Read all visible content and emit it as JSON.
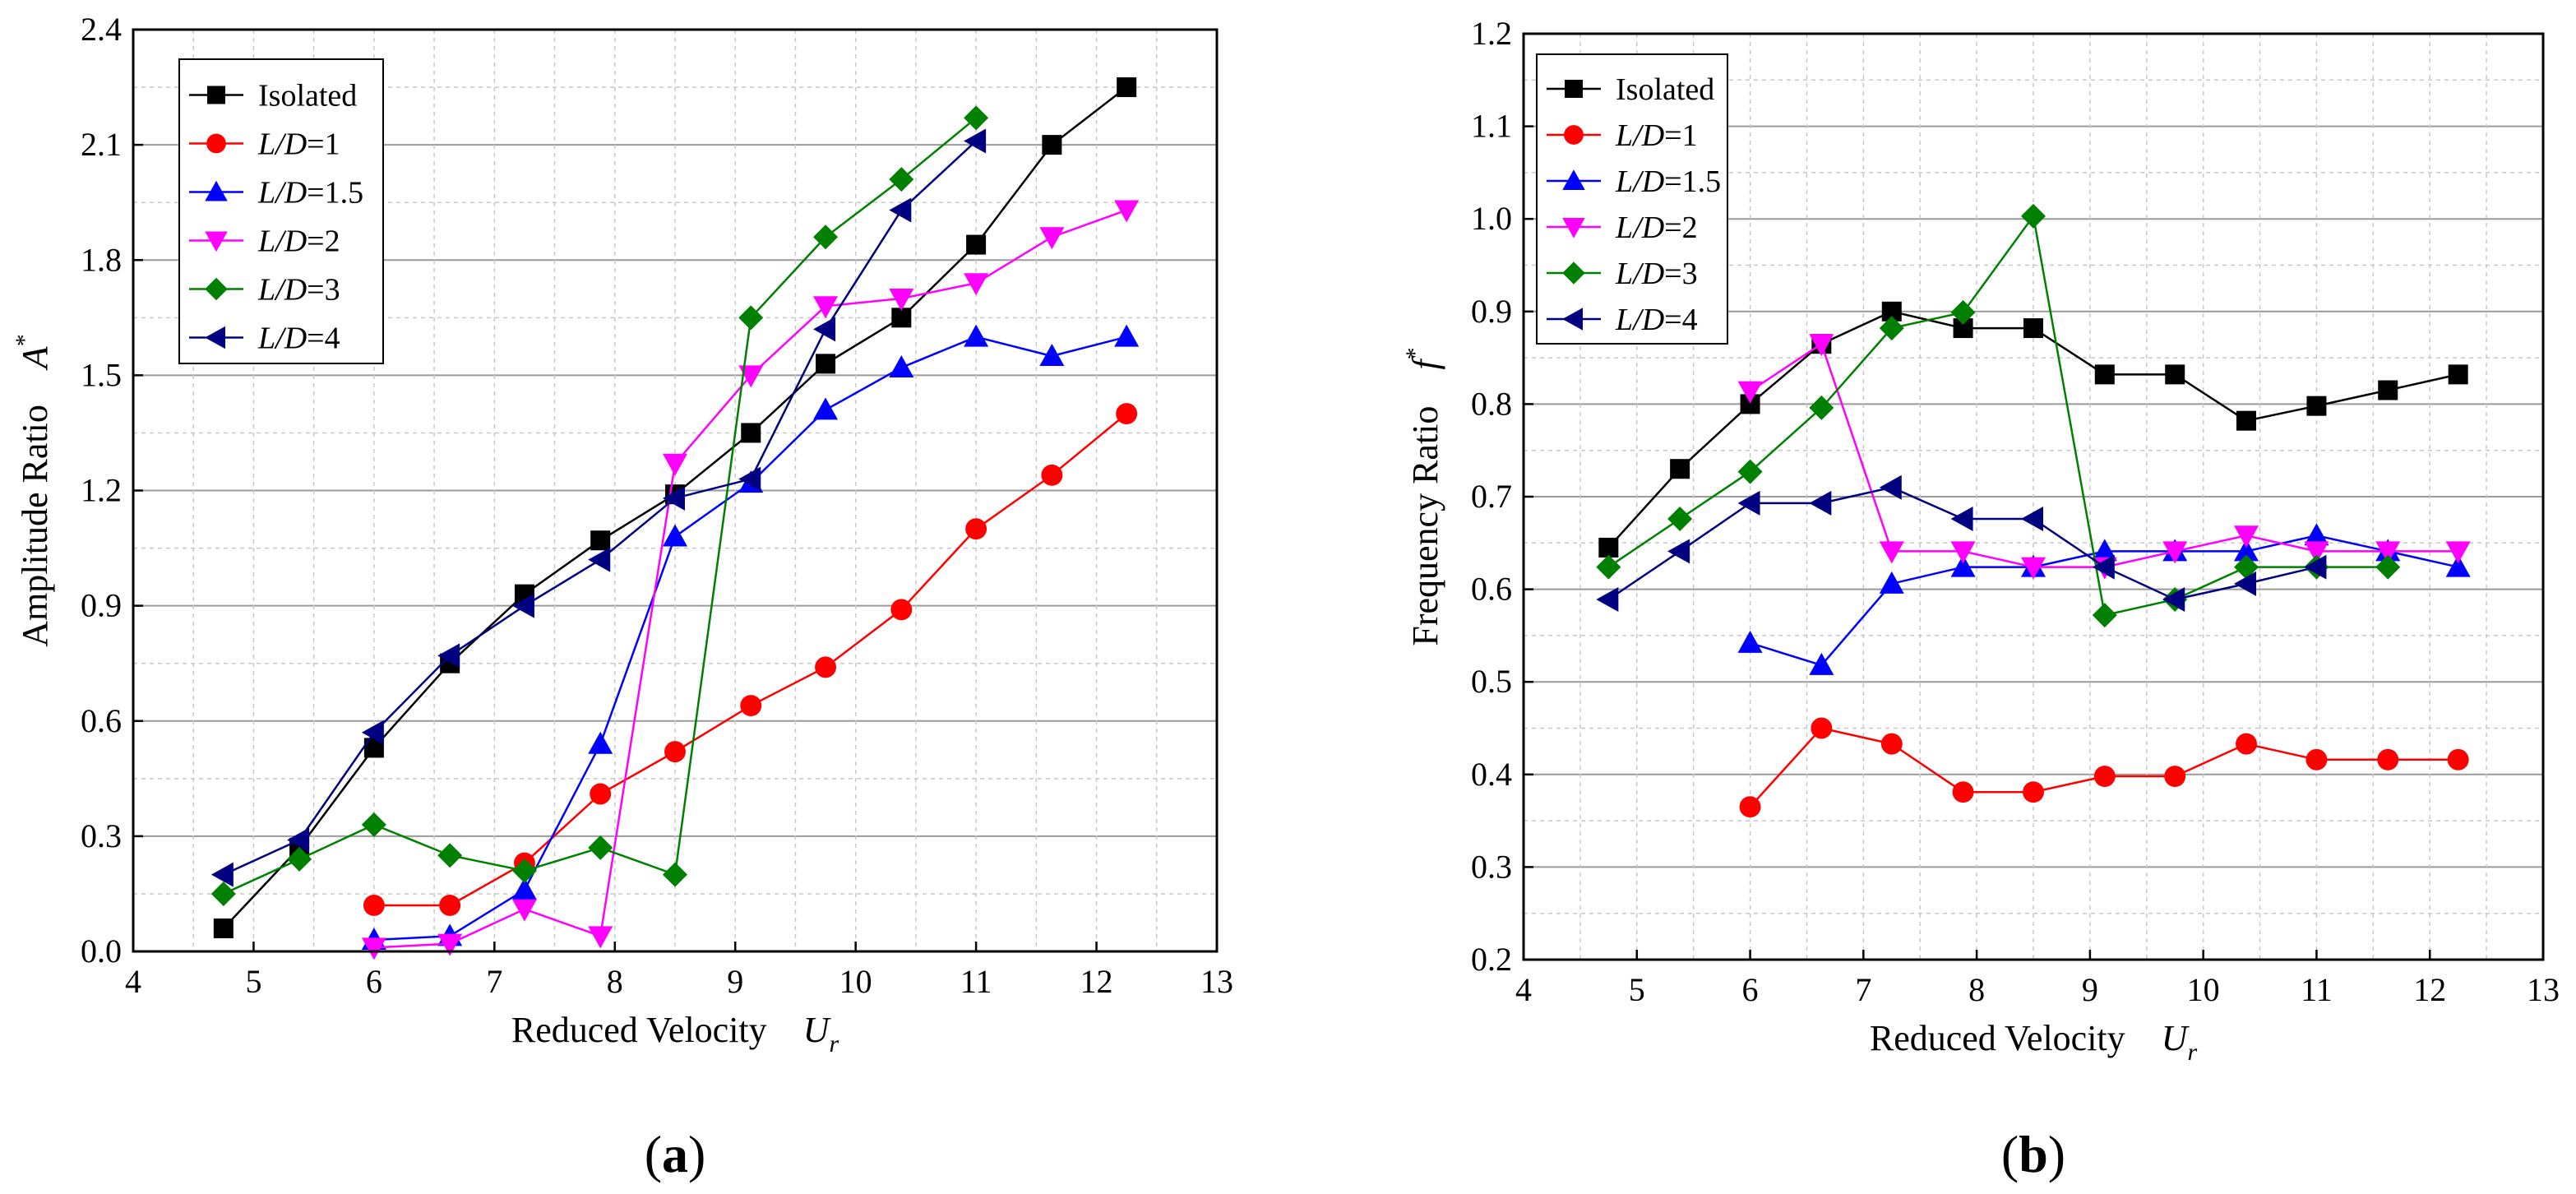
{
  "chart_data": [
    {
      "type": "line",
      "panel": "(a)",
      "panel_letter": "a",
      "xlabel": "Reduced Velocity",
      "xlabel_symbol": "U",
      "xlabel_sub": "r",
      "ylabel": "Amplitude Ratio",
      "ylabel_symbol": "A",
      "ylabel_sup": "*",
      "xlim": [
        4,
        13
      ],
      "ylim": [
        0,
        2.4
      ],
      "xticks": [
        "4",
        "5",
        "6",
        "7",
        "8",
        "9",
        "10",
        "11",
        "12",
        "13"
      ],
      "yticks": [
        "0.0",
        "0.3",
        "0.6",
        "0.9",
        "1.2",
        "1.5",
        "1.8",
        "2.1",
        "2.4"
      ],
      "grid": true,
      "legend_position": "top-left",
      "series": [
        {
          "name": "Isolated",
          "label_prefix": "",
          "label_suffix": "Isolated",
          "color": "#000000",
          "marker": "square",
          "x": [
            4.75,
            5.38,
            6.0,
            6.63,
            7.25,
            7.88,
            8.5,
            9.13,
            9.75,
            10.38,
            11.0,
            11.63,
            12.25
          ],
          "y": [
            0.06,
            0.27,
            0.53,
            0.75,
            0.93,
            1.07,
            1.19,
            1.35,
            1.53,
            1.65,
            1.84,
            2.1,
            2.25
          ]
        },
        {
          "name": "L/D=1",
          "label_prefix": "L/D",
          "label_suffix": "=1",
          "color": "#ff0000",
          "marker": "circle",
          "x": [
            6.0,
            6.63,
            7.25,
            7.88,
            8.5,
            9.13,
            9.75,
            10.38,
            11.0,
            11.63,
            12.25
          ],
          "y": [
            0.12,
            0.12,
            0.23,
            0.41,
            0.52,
            0.64,
            0.74,
            0.89,
            1.1,
            1.24,
            1.4
          ]
        },
        {
          "name": "L/D=1.5",
          "label_prefix": "L/D",
          "label_suffix": "=1.5",
          "color": "#0000ff",
          "marker": "triangle-up",
          "x": [
            6.0,
            6.63,
            7.25,
            7.88,
            8.5,
            9.13,
            9.75,
            10.38,
            11.0,
            11.63,
            12.25
          ],
          "y": [
            0.03,
            0.04,
            0.16,
            0.54,
            1.08,
            1.22,
            1.41,
            1.52,
            1.6,
            1.55,
            1.6
          ]
        },
        {
          "name": "L/D=2",
          "label_prefix": "L/D",
          "label_suffix": "=2",
          "color": "#ff00ff",
          "marker": "triangle-down",
          "x": [
            6.0,
            6.63,
            7.25,
            7.88,
            8.5,
            9.13,
            9.75,
            10.38,
            11.0,
            11.63,
            12.25
          ],
          "y": [
            0.01,
            0.02,
            0.11,
            0.04,
            1.27,
            1.5,
            1.68,
            1.7,
            1.74,
            1.86,
            1.93
          ]
        },
        {
          "name": "L/D=3",
          "label_prefix": "L/D",
          "label_suffix": "=3",
          "color": "#008000",
          "marker": "diamond",
          "x": [
            4.75,
            5.38,
            6.0,
            6.63,
            7.25,
            7.88,
            8.5,
            9.13,
            9.75,
            10.38,
            11.0
          ],
          "y": [
            0.15,
            0.24,
            0.33,
            0.25,
            0.21,
            0.27,
            0.2,
            1.65,
            1.86,
            2.01,
            2.17
          ]
        },
        {
          "name": "L/D=4",
          "label_prefix": "L/D",
          "label_suffix": "=4",
          "color": "#000080",
          "marker": "triangle-left",
          "x": [
            4.75,
            5.38,
            6.0,
            6.63,
            7.25,
            7.88,
            8.5,
            9.13,
            9.75,
            10.38,
            11.0
          ],
          "y": [
            0.2,
            0.29,
            0.57,
            0.77,
            0.9,
            1.02,
            1.18,
            1.23,
            1.62,
            1.93,
            2.11
          ]
        }
      ]
    },
    {
      "type": "line",
      "panel": "(b)",
      "panel_letter": "b",
      "xlabel": "Reduced Velocity",
      "xlabel_symbol": "U",
      "xlabel_sub": "r",
      "ylabel": "Frequency Ratio",
      "ylabel_symbol": "f",
      "ylabel_sup": "*",
      "xlim": [
        4,
        13
      ],
      "ylim": [
        0.2,
        1.2
      ],
      "xticks": [
        "4",
        "5",
        "6",
        "7",
        "8",
        "9",
        "10",
        "11",
        "12",
        "13"
      ],
      "yticks": [
        "0.2",
        "0.3",
        "0.4",
        "0.5",
        "0.6",
        "0.7",
        "0.8",
        "0.9",
        "1.0",
        "1.1",
        "1.2"
      ],
      "grid": true,
      "legend_position": "top-left",
      "series": [
        {
          "name": "Isolated",
          "label_prefix": "",
          "label_suffix": "Isolated",
          "color": "#000000",
          "marker": "square",
          "x": [
            4.75,
            5.38,
            6.0,
            6.63,
            7.25,
            7.88,
            8.5,
            9.13,
            9.75,
            10.38,
            11.0,
            11.63,
            12.25
          ],
          "y": [
            0.645,
            0.73,
            0.8,
            0.865,
            0.9,
            0.882,
            0.882,
            0.832,
            0.832,
            0.782,
            0.798,
            0.815,
            0.832
          ]
        },
        {
          "name": "L/D=1",
          "label_prefix": "L/D",
          "label_suffix": "=1",
          "color": "#ff0000",
          "marker": "circle",
          "x": [
            6.0,
            6.63,
            7.25,
            7.88,
            8.5,
            9.13,
            9.75,
            10.38,
            11.0,
            11.63,
            12.25
          ],
          "y": [
            0.365,
            0.45,
            0.433,
            0.381,
            0.381,
            0.398,
            0.398,
            0.433,
            0.416,
            0.416,
            0.416
          ]
        },
        {
          "name": "L/D=1.5",
          "label_prefix": "L/D",
          "label_suffix": "=1.5",
          "color": "#0000ff",
          "marker": "triangle-up",
          "x": [
            6.0,
            6.63,
            7.25,
            7.88,
            8.5,
            9.13,
            9.75,
            10.38,
            11.0,
            11.63,
            12.25
          ],
          "y": [
            0.542,
            0.518,
            0.606,
            0.624,
            0.624,
            0.641,
            0.641,
            0.641,
            0.658,
            0.641,
            0.624
          ]
        },
        {
          "name": "L/D=2",
          "label_prefix": "L/D",
          "label_suffix": "=2",
          "color": "#ff00ff",
          "marker": "triangle-down",
          "x": [
            6.0,
            6.63,
            7.25,
            7.88,
            8.5,
            9.13,
            9.75,
            10.38,
            11.0,
            11.63,
            12.25
          ],
          "y": [
            0.814,
            0.865,
            0.641,
            0.641,
            0.624,
            0.624,
            0.641,
            0.658,
            0.641,
            0.641,
            0.641
          ]
        },
        {
          "name": "L/D=3",
          "label_prefix": "L/D",
          "label_suffix": "=3",
          "color": "#008000",
          "marker": "diamond",
          "x": [
            4.75,
            5.38,
            6.0,
            6.63,
            7.25,
            7.88,
            8.5,
            9.13,
            9.75,
            10.38,
            11.0,
            11.63
          ],
          "y": [
            0.624,
            0.676,
            0.727,
            0.796,
            0.882,
            0.899,
            1.003,
            0.572,
            0.589,
            0.624,
            0.624,
            0.624
          ]
        },
        {
          "name": "L/D=4",
          "label_prefix": "L/D",
          "label_suffix": "=4",
          "color": "#000080",
          "marker": "triangle-left",
          "x": [
            4.75,
            5.38,
            6.0,
            6.63,
            7.25,
            7.88,
            8.5,
            9.13,
            9.75,
            10.38,
            11.0
          ],
          "y": [
            0.589,
            0.641,
            0.693,
            0.693,
            0.71,
            0.676,
            0.676,
            0.624,
            0.589,
            0.606,
            0.624
          ]
        }
      ]
    }
  ]
}
